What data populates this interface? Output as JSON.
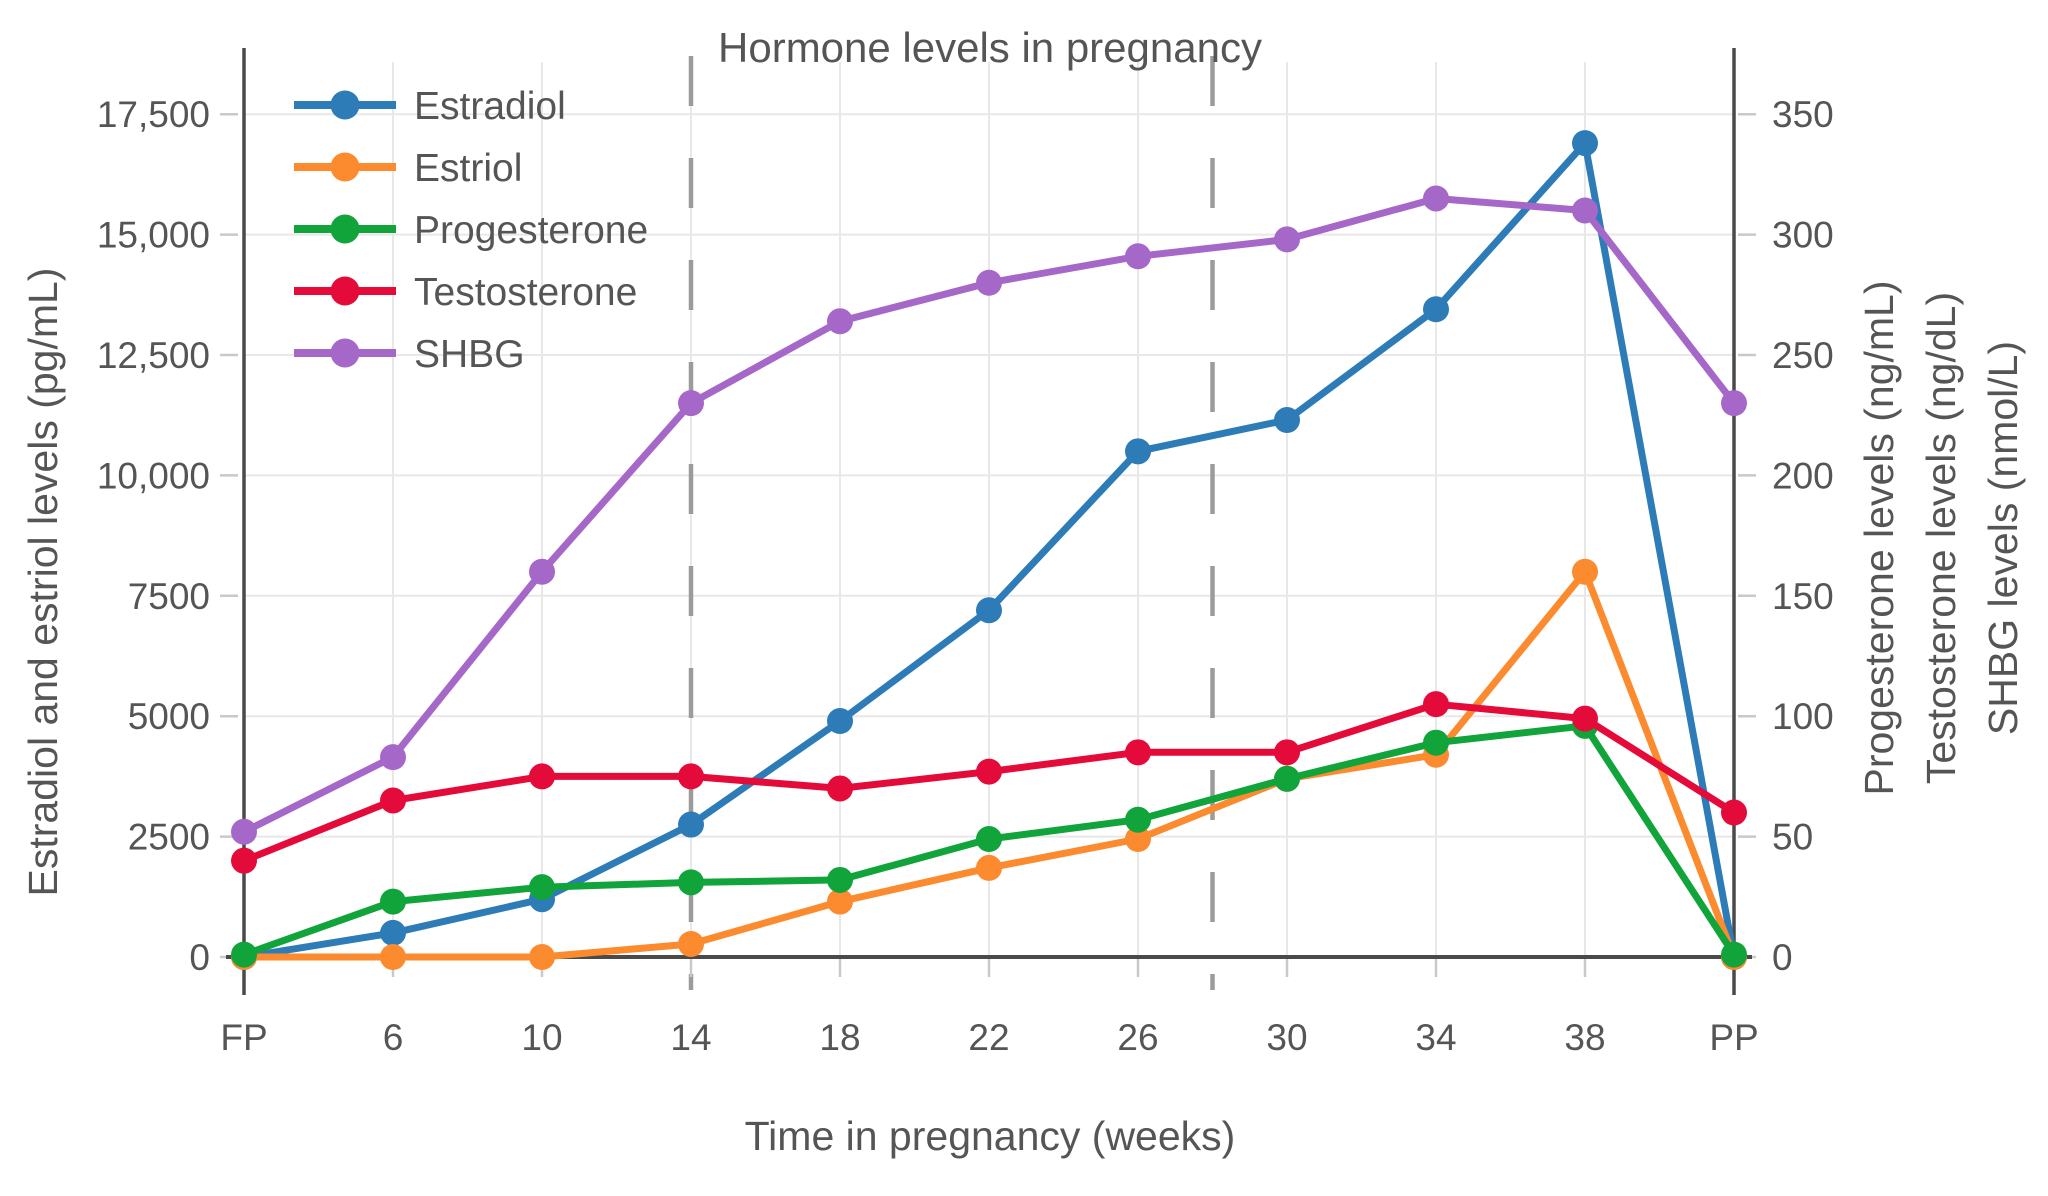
{
  "title": "Hormone levels in pregnancy",
  "chart_data": {
    "type": "line",
    "title": "Hormone levels in pregnancy",
    "xlabel": "Time in pregnancy (weeks)",
    "ylabel_left": "Estradiol and estriol levels (pg/mL)",
    "ylabels_right": [
      "Progesterone levels (ng/mL)",
      "Testosterone levels (ng/dL)",
      "SHBG levels (nmol/L)"
    ],
    "categories": [
      "FP",
      "6",
      "10",
      "14",
      "18",
      "22",
      "26",
      "30",
      "34",
      "38",
      "PP"
    ],
    "series": [
      {
        "name": "Estradiol",
        "axis": "left",
        "unit": "pg/mL",
        "color": "#2d7cb8",
        "values": [
          0,
          500,
          1200,
          2750,
          4900,
          7200,
          10500,
          11150,
          13450,
          16900,
          0
        ]
      },
      {
        "name": "Estriol",
        "axis": "left",
        "unit": "pg/mL",
        "color": "#fb8b2e",
        "values": [
          0,
          0,
          0,
          270,
          1150,
          1850,
          2450,
          3700,
          4200,
          8000,
          0
        ]
      },
      {
        "name": "Progesterone",
        "axis": "right",
        "unit": "ng/mL",
        "color": "#10a43a",
        "values": [
          1,
          23,
          29,
          31,
          32,
          49,
          57,
          74,
          89,
          96,
          1
        ]
      },
      {
        "name": "Testosterone",
        "axis": "right",
        "unit": "ng/dL",
        "color": "#e40b3a",
        "values": [
          40,
          65,
          75,
          75,
          70,
          77,
          85,
          85,
          105,
          99,
          60
        ]
      },
      {
        "name": "SHBG",
        "axis": "right",
        "unit": "nmol/L",
        "color": "#a568c8",
        "values": [
          52,
          83,
          160,
          230,
          264,
          280,
          291,
          298,
          315,
          310,
          230
        ]
      }
    ],
    "legend": {
      "position": "top-left-inside",
      "entries": [
        "Estradiol",
        "Estriol",
        "Progesterone",
        "Testosterone",
        "SHBG"
      ]
    },
    "y_left_ticks": {
      "values": [
        0,
        2500,
        5000,
        7500,
        10000,
        12500,
        15000,
        17500
      ],
      "labels": [
        "0",
        "2500",
        "5000",
        "7500",
        "10,000",
        "12,500",
        "15,000",
        "17,500"
      ]
    },
    "y_right_ticks": {
      "values": [
        0,
        50,
        100,
        150,
        200,
        250,
        300,
        350
      ],
      "labels": [
        "0",
        "50",
        "100",
        "150",
        "200",
        "250",
        "300",
        "350"
      ]
    },
    "ylim_left": [
      0,
      18900
    ],
    "ylim_right": [
      0,
      378
    ],
    "grid": true,
    "dashed_vlines": [
      {
        "at_week": 14,
        "x_index": 3
      },
      {
        "at_week": 28,
        "x_index": 6.5
      }
    ]
  },
  "colors": {
    "background": "#ffffff",
    "gridline": "#e8e8e8",
    "axis_line": "#4a4a4a",
    "minor_tick": "#c9c9c9",
    "dashed_guide": "#9b9b9b",
    "text": "#555555"
  }
}
